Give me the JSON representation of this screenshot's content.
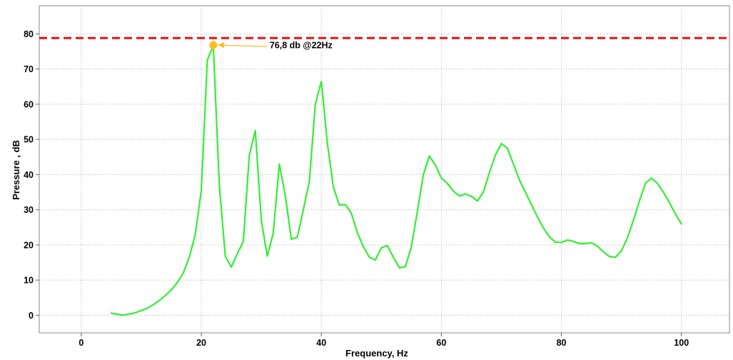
{
  "chart_data": {
    "type": "line",
    "xlabel": "Frequency, Hz",
    "ylabel": "Pressure , dB",
    "xlim": [
      -7,
      108
    ],
    "ylim": [
      -5,
      88
    ],
    "xticks": [
      0,
      20,
      40,
      60,
      80,
      100
    ],
    "yticks": [
      0,
      10,
      20,
      30,
      40,
      50,
      60,
      70,
      80
    ],
    "grid": true,
    "series": [
      {
        "color": "#33ee33",
        "points": [
          [
            5,
            0.6
          ],
          [
            7,
            0
          ],
          [
            9,
            0.7
          ],
          [
            11,
            2
          ],
          [
            12,
            3
          ],
          [
            13,
            4.2
          ],
          [
            14,
            5.6
          ],
          [
            15,
            7.2
          ],
          [
            16,
            9.3
          ],
          [
            17,
            12
          ],
          [
            18,
            16.5
          ],
          [
            19,
            23
          ],
          [
            20,
            35.5
          ],
          [
            21,
            72.5
          ],
          [
            22,
            76.8
          ],
          [
            23,
            37
          ],
          [
            24,
            16.8
          ],
          [
            25,
            13.7
          ],
          [
            26,
            17.5
          ],
          [
            27,
            21
          ],
          [
            28,
            45.5
          ],
          [
            29,
            52.5
          ],
          [
            30,
            27
          ],
          [
            31,
            16.8
          ],
          [
            32,
            23.5
          ],
          [
            33,
            43
          ],
          [
            34,
            34
          ],
          [
            35,
            21.6
          ],
          [
            36,
            22.2
          ],
          [
            37,
            30
          ],
          [
            38,
            38
          ],
          [
            39,
            60
          ],
          [
            40,
            66.5
          ],
          [
            41,
            49
          ],
          [
            42,
            36.5
          ],
          [
            43,
            31.3
          ],
          [
            44,
            31.5
          ],
          [
            45,
            29
          ],
          [
            46,
            23.5
          ],
          [
            47,
            19.5
          ],
          [
            48,
            16.5
          ],
          [
            49,
            15.7
          ],
          [
            50,
            19.2
          ],
          [
            51,
            19.8
          ],
          [
            52,
            16.5
          ],
          [
            53,
            13.5
          ],
          [
            54,
            13.8
          ],
          [
            55,
            19.5
          ],
          [
            56,
            29.5
          ],
          [
            57,
            40
          ],
          [
            58,
            45.3
          ],
          [
            59,
            42.7
          ],
          [
            60,
            39
          ],
          [
            61,
            37.5
          ],
          [
            62,
            35.3
          ],
          [
            63,
            33.9
          ],
          [
            64,
            34.5
          ],
          [
            65,
            33.8
          ],
          [
            66,
            32.5
          ],
          [
            67,
            35
          ],
          [
            68,
            40.5
          ],
          [
            69,
            45.5
          ],
          [
            70,
            48.8
          ],
          [
            71,
            47.5
          ],
          [
            72,
            43
          ],
          [
            73,
            38.5
          ],
          [
            74,
            35
          ],
          [
            75,
            31.5
          ],
          [
            76,
            28
          ],
          [
            77,
            24.8
          ],
          [
            78,
            22.3
          ],
          [
            79,
            20.8
          ],
          [
            80,
            20.7
          ],
          [
            81,
            21.4
          ],
          [
            82,
            21
          ],
          [
            83,
            20.4
          ],
          [
            84,
            20.4
          ],
          [
            85,
            20.6
          ],
          [
            86,
            19.7
          ],
          [
            87,
            18
          ],
          [
            88,
            16.7
          ],
          [
            89,
            16.5
          ],
          [
            90,
            18.3
          ],
          [
            91,
            22
          ],
          [
            92,
            27
          ],
          [
            93,
            32.5
          ],
          [
            94,
            37.5
          ],
          [
            95,
            39
          ],
          [
            96,
            37.5
          ],
          [
            97,
            35
          ],
          [
            98,
            32
          ],
          [
            99,
            28.8
          ],
          [
            100,
            26
          ]
        ]
      }
    ],
    "threshold": {
      "y": 78.8,
      "color": "#ee1111"
    },
    "annotations": [
      {
        "x": 22,
        "y": 76.8,
        "label": "76,8 db @22Hz",
        "color": "#ffbb22"
      }
    ]
  }
}
